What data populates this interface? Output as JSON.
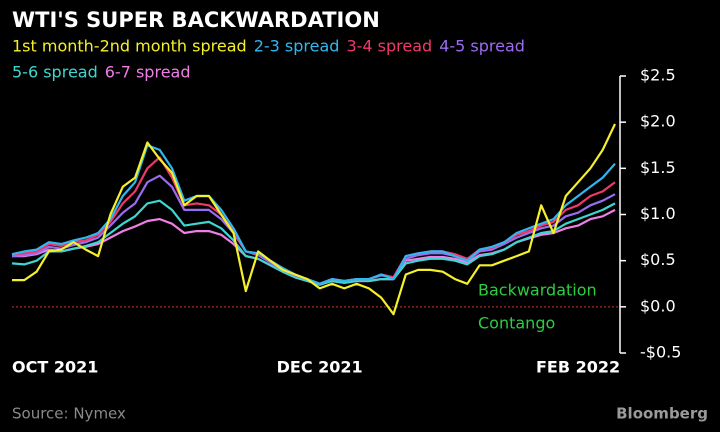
{
  "chart_data": {
    "type": "line",
    "title": "WTI'S SUPER BACKWARDATION",
    "source": "Source: Nymex",
    "brand": "Bloomberg",
    "annotations": [
      "Backwardation",
      "Contango"
    ],
    "annotation_color": "#2ecc40",
    "zero_line_color": "#c0392b",
    "categories": [
      "OCT 2021",
      null,
      null,
      null,
      null,
      null,
      null,
      null,
      null,
      null,
      null,
      null,
      null,
      null,
      null,
      null,
      null,
      null,
      null,
      null,
      null,
      null,
      null,
      null,
      null,
      "DEC 2021",
      null,
      null,
      null,
      null,
      null,
      null,
      null,
      null,
      null,
      null,
      null,
      null,
      null,
      null,
      null,
      null,
      null,
      null,
      null,
      null,
      "FEB 2022",
      null,
      null,
      null
    ],
    "ylim": [
      -0.5,
      2.5
    ],
    "yticks": [
      {
        "value": 2.5,
        "label": "$2.5"
      },
      {
        "value": 2.0,
        "label": "$2.0"
      },
      {
        "value": 1.5,
        "label": "$1.5"
      },
      {
        "value": 1.0,
        "label": "$1.0"
      },
      {
        "value": 0.5,
        "label": "$0.5"
      },
      {
        "value": 0.0,
        "label": "$0.0"
      },
      {
        "value": -0.5,
        "label": "-$0.5"
      }
    ],
    "series": [
      {
        "name": "6-7 spread",
        "color": "#f07ee6",
        "values": [
          0.55,
          0.55,
          0.57,
          0.62,
          0.6,
          0.63,
          0.65,
          0.68,
          0.75,
          0.82,
          0.87,
          0.93,
          0.95,
          0.9,
          0.8,
          0.82,
          0.82,
          0.78,
          0.68,
          0.55,
          0.52,
          0.45,
          0.38,
          0.32,
          0.28,
          0.24,
          0.28,
          0.26,
          0.28,
          0.28,
          0.3,
          0.3,
          0.5,
          0.52,
          0.54,
          0.54,
          0.52,
          0.48,
          0.56,
          0.58,
          0.62,
          0.7,
          0.74,
          0.78,
          0.8,
          0.85,
          0.88,
          0.95,
          0.98,
          1.05
        ]
      },
      {
        "name": "5-6 spread",
        "color": "#3fd6d0",
        "values": [
          0.47,
          0.46,
          0.5,
          0.6,
          0.6,
          0.63,
          0.66,
          0.7,
          0.8,
          0.9,
          0.98,
          1.12,
          1.15,
          1.05,
          0.88,
          0.9,
          0.92,
          0.85,
          0.72,
          0.55,
          0.52,
          0.45,
          0.38,
          0.32,
          0.28,
          0.24,
          0.28,
          0.26,
          0.28,
          0.28,
          0.3,
          0.3,
          0.47,
          0.5,
          0.52,
          0.52,
          0.5,
          0.46,
          0.55,
          0.57,
          0.62,
          0.7,
          0.75,
          0.8,
          0.82,
          0.9,
          0.95,
          1.0,
          1.05,
          1.12
        ]
      },
      {
        "name": "4-5 spread",
        "color": "#9b6cf0",
        "values": [
          0.55,
          0.56,
          0.58,
          0.65,
          0.63,
          0.67,
          0.7,
          0.75,
          0.88,
          1.02,
          1.12,
          1.35,
          1.42,
          1.3,
          1.05,
          1.05,
          1.05,
          0.95,
          0.8,
          0.6,
          0.56,
          0.48,
          0.4,
          0.34,
          0.3,
          0.25,
          0.3,
          0.28,
          0.3,
          0.3,
          0.34,
          0.32,
          0.52,
          0.56,
          0.58,
          0.58,
          0.55,
          0.5,
          0.6,
          0.62,
          0.68,
          0.75,
          0.8,
          0.85,
          0.88,
          0.98,
          1.02,
          1.1,
          1.15,
          1.22
        ]
      },
      {
        "name": "3-4 spread",
        "color": "#f0386b",
        "values": [
          0.57,
          0.58,
          0.6,
          0.68,
          0.66,
          0.7,
          0.72,
          0.78,
          0.92,
          1.12,
          1.25,
          1.5,
          1.62,
          1.4,
          1.1,
          1.12,
          1.1,
          1.0,
          0.82,
          0.6,
          0.57,
          0.5,
          0.42,
          0.35,
          0.3,
          0.25,
          0.3,
          0.28,
          0.3,
          0.3,
          0.35,
          0.32,
          0.55,
          0.58,
          0.6,
          0.6,
          0.57,
          0.52,
          0.62,
          0.64,
          0.7,
          0.78,
          0.82,
          0.88,
          0.92,
          1.05,
          1.1,
          1.2,
          1.25,
          1.35
        ]
      },
      {
        "name": "2-3 spread",
        "color": "#2fb8f0",
        "values": [
          0.57,
          0.6,
          0.62,
          0.7,
          0.68,
          0.72,
          0.75,
          0.8,
          0.95,
          1.2,
          1.35,
          1.75,
          1.7,
          1.5,
          1.15,
          1.2,
          1.2,
          1.05,
          0.85,
          0.6,
          0.58,
          0.5,
          0.42,
          0.35,
          0.3,
          0.25,
          0.3,
          0.28,
          0.3,
          0.3,
          0.35,
          0.3,
          0.55,
          0.58,
          0.6,
          0.6,
          0.55,
          0.5,
          0.62,
          0.65,
          0.7,
          0.8,
          0.85,
          0.9,
          0.95,
          1.1,
          1.2,
          1.3,
          1.4,
          1.55
        ]
      },
      {
        "name": "1st month-2nd month spread",
        "color": "#f5f02a",
        "values": [
          0.29,
          0.29,
          0.38,
          0.6,
          0.62,
          0.7,
          0.62,
          0.55,
          1.0,
          1.3,
          1.4,
          1.78,
          1.6,
          1.45,
          1.1,
          1.2,
          1.2,
          1.0,
          0.8,
          0.17,
          0.6,
          0.5,
          0.4,
          0.35,
          0.3,
          0.2,
          0.25,
          0.2,
          0.25,
          0.2,
          0.1,
          -0.08,
          0.35,
          0.4,
          0.4,
          0.38,
          0.3,
          0.25,
          0.45,
          0.45,
          0.5,
          0.55,
          0.6,
          1.1,
          0.8,
          1.2,
          1.35,
          1.5,
          1.7,
          1.98
        ]
      }
    ]
  }
}
